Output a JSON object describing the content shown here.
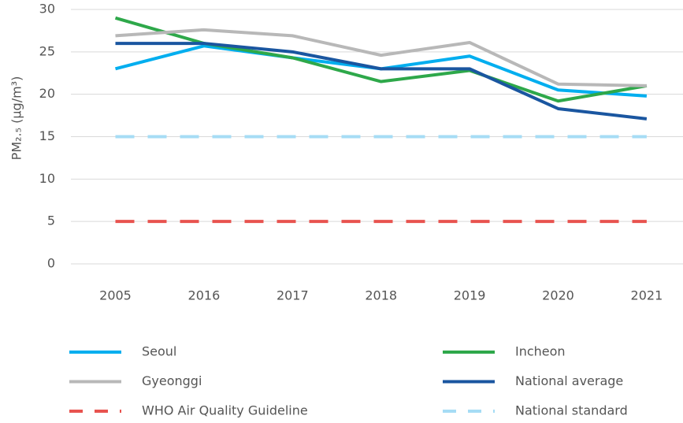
{
  "chart_data": {
    "type": "line",
    "y_label": "PM₂.₅ (µg/m³)",
    "categories": [
      "2005",
      "2016",
      "2017",
      "2018",
      "2019",
      "2020",
      "2021"
    ],
    "series": [
      {
        "name": "Seoul",
        "color": "#00aeef",
        "values": [
          23,
          25.7,
          24.3,
          23,
          24.5,
          20.5,
          19.8
        ]
      },
      {
        "name": "Incheon",
        "color": "#2ea84a",
        "values": [
          29,
          26,
          24.3,
          21.5,
          22.8,
          19.2,
          21
        ]
      },
      {
        "name": "Gyeonggi",
        "color": "#b8b8b8",
        "values": [
          26.9,
          27.6,
          26.9,
          24.6,
          26.1,
          21.2,
          21
        ]
      },
      {
        "name": "National average",
        "color": "#1a56a0",
        "values": [
          26,
          26,
          25,
          23,
          23,
          18.3,
          17.1
        ]
      },
      {
        "name": "WHO Air Quality Guideline",
        "color": "#e8534f",
        "dashed": true,
        "values": [
          5,
          5,
          5,
          5,
          5,
          5,
          5
        ]
      },
      {
        "name": "National standard",
        "color": "#a6dcf5",
        "dashed": true,
        "values": [
          15,
          15,
          15,
          15,
          15,
          15,
          15
        ]
      }
    ],
    "ylim": [
      0,
      30
    ],
    "yticks": [
      0,
      5,
      10,
      15,
      20,
      25,
      30
    ],
    "grid": true
  }
}
